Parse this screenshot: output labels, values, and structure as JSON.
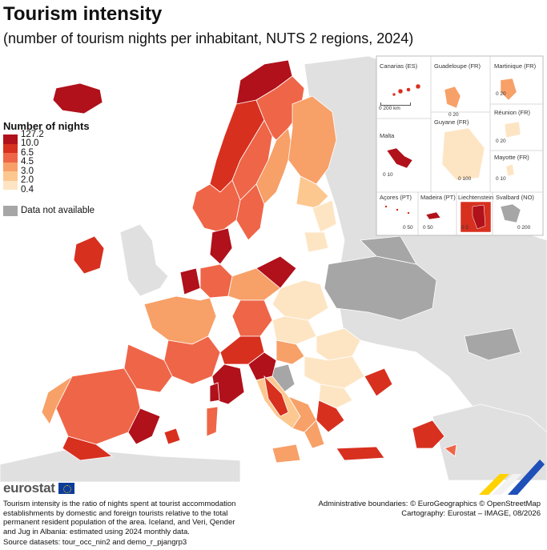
{
  "title": "Tourism intensity",
  "subtitle": "(number of tourism nights per inhabitant, NUTS 2 regions, 2024)",
  "legend": {
    "title": "Number of nights",
    "classes": [
      {
        "label": "127.2",
        "color": "#b0111b"
      },
      {
        "label": "10.0",
        "color": "#d7301f"
      },
      {
        "label": "6.5",
        "color": "#ef6548"
      },
      {
        "label": "4.5",
        "color": "#f7a068"
      },
      {
        "label": "3.0",
        "color": "#fcc890"
      },
      {
        "label": "2.0",
        "color": "#fde5c4"
      },
      {
        "label": "0.4",
        "color": null
      }
    ],
    "not_available": {
      "label": "Data not available",
      "color": "#a6a6a6"
    }
  },
  "insets": {
    "canarias": "Canarias (ES)",
    "guadeloupe": "Guadeloupe (FR)",
    "martinique": "Martinique (FR)",
    "reunion": "Réunion (FR)",
    "malta": "Malta",
    "guyane": "Guyane (FR)",
    "mayotte": "Mayotte (FR)",
    "acores": "Açores (PT)",
    "madeira": "Madeira (PT)",
    "liechtenstein": "Liechtenstein",
    "svalbard": "Svalbard (NO)",
    "scales": {
      "canarias": "0      200 km",
      "guadeloupe": "0   20",
      "martinique": "0   20",
      "reunion": "0   20",
      "malta": "0   10",
      "guyane": "0      100",
      "mayotte": "0   10",
      "acores": "0   50",
      "madeira": "0      50",
      "liechtenstein": "0  5",
      "svalbard": "0      200"
    }
  },
  "branding": {
    "word": "eurostat"
  },
  "note": "Tourism intensity is the ratio of nights spent at tourist accommodation establishments by domestic and foreign tourists relative to the total permanent resident population of the area. Iceland, and Veri, Qender and Jug in Albania: estimated using 2024 monthly data.",
  "source": "Source datasets: tour_occ_nin2 and demo_r_pjangrp3",
  "credits": {
    "boundaries": "Administrative boundaries: © EuroGeographics © OpenStreetMap",
    "cartography": "Cartography: Eurostat – IMAGE, 08/2026"
  }
}
